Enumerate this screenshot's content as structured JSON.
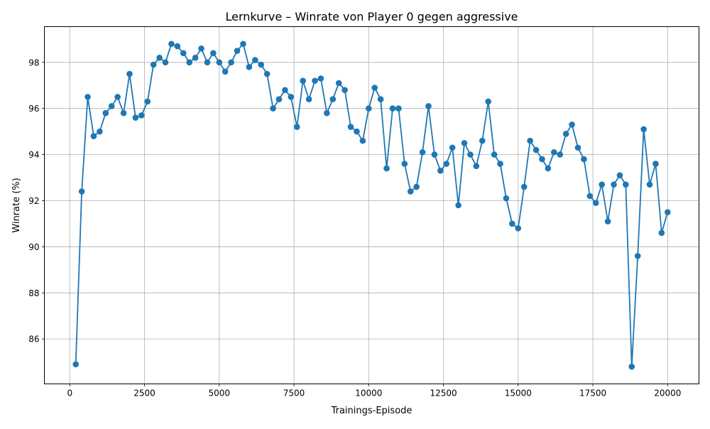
{
  "chart_data": {
    "type": "line",
    "title": "Lernkurve – Winrate von Player 0 gegen aggressive",
    "xlabel": "Trainings-Episode",
    "ylabel": "Winrate (%)",
    "xlim": [
      -850,
      21050
    ],
    "ylim": [
      84.05,
      99.55
    ],
    "x_ticks": [
      0,
      2500,
      5000,
      7500,
      10000,
      12500,
      15000,
      17500,
      20000
    ],
    "y_ticks": [
      86,
      88,
      90,
      92,
      94,
      96,
      98
    ],
    "grid": true,
    "line_color": "#1f77b4",
    "marker": "circle",
    "series": [
      {
        "x": [
          200,
          400,
          600,
          800,
          1000,
          1200,
          1400,
          1600,
          1800,
          2000,
          2200,
          2400,
          2600,
          2800,
          3000,
          3200,
          3400,
          3600,
          3800,
          4000,
          4200,
          4400,
          4600,
          4800,
          5000,
          5200,
          5400,
          5600,
          5800,
          6000,
          6200,
          6400,
          6600,
          6800,
          7000,
          7200,
          7400,
          7600,
          7800,
          8000,
          8200,
          8400,
          8600,
          8800,
          9000,
          9200,
          9400,
          9600,
          9800,
          10000,
          10200,
          10400,
          10600,
          10800,
          11000,
          11200,
          11400,
          11600,
          11800,
          12000,
          12200,
          12400,
          12600,
          12800,
          13000,
          13200,
          13400,
          13600,
          13800,
          14000,
          14200,
          14400,
          14600,
          14800,
          15000,
          15200,
          15400,
          15600,
          15800,
          16000,
          16200,
          16400,
          16600,
          16800,
          17000,
          17200,
          17400,
          17600,
          17800,
          18000,
          18200,
          18400,
          18600,
          18800,
          19000,
          19200,
          19400,
          19600,
          19800,
          20000
        ],
        "values": [
          84.9,
          92.4,
          96.5,
          94.8,
          95.0,
          95.8,
          96.1,
          96.5,
          95.8,
          97.5,
          95.6,
          95.7,
          96.3,
          97.9,
          98.2,
          98.0,
          98.8,
          98.7,
          98.4,
          98.0,
          98.2,
          98.6,
          98.0,
          98.4,
          98.0,
          97.6,
          98.0,
          98.5,
          98.8,
          97.8,
          98.1,
          97.9,
          97.5,
          96.0,
          96.4,
          96.8,
          96.5,
          95.2,
          97.2,
          96.4,
          97.2,
          97.3,
          95.8,
          96.4,
          97.1,
          96.8,
          95.2,
          95.0,
          94.6,
          96.0,
          96.9,
          96.4,
          93.4,
          96.0,
          96.0,
          93.6,
          92.4,
          92.6,
          94.1,
          96.1,
          94.0,
          93.3,
          93.6,
          94.3,
          91.8,
          94.5,
          94.0,
          93.5,
          94.6,
          96.3,
          94.0,
          93.6,
          92.1,
          91.0,
          90.8,
          92.6,
          94.6,
          94.2,
          93.8,
          93.4,
          94.1,
          94.0,
          94.9,
          95.3,
          94.3,
          93.8,
          92.2,
          91.9,
          92.7,
          91.1,
          92.7,
          93.1,
          92.7,
          84.8,
          89.6,
          95.1,
          92.7,
          93.6,
          90.6,
          91.5
        ]
      }
    ]
  }
}
